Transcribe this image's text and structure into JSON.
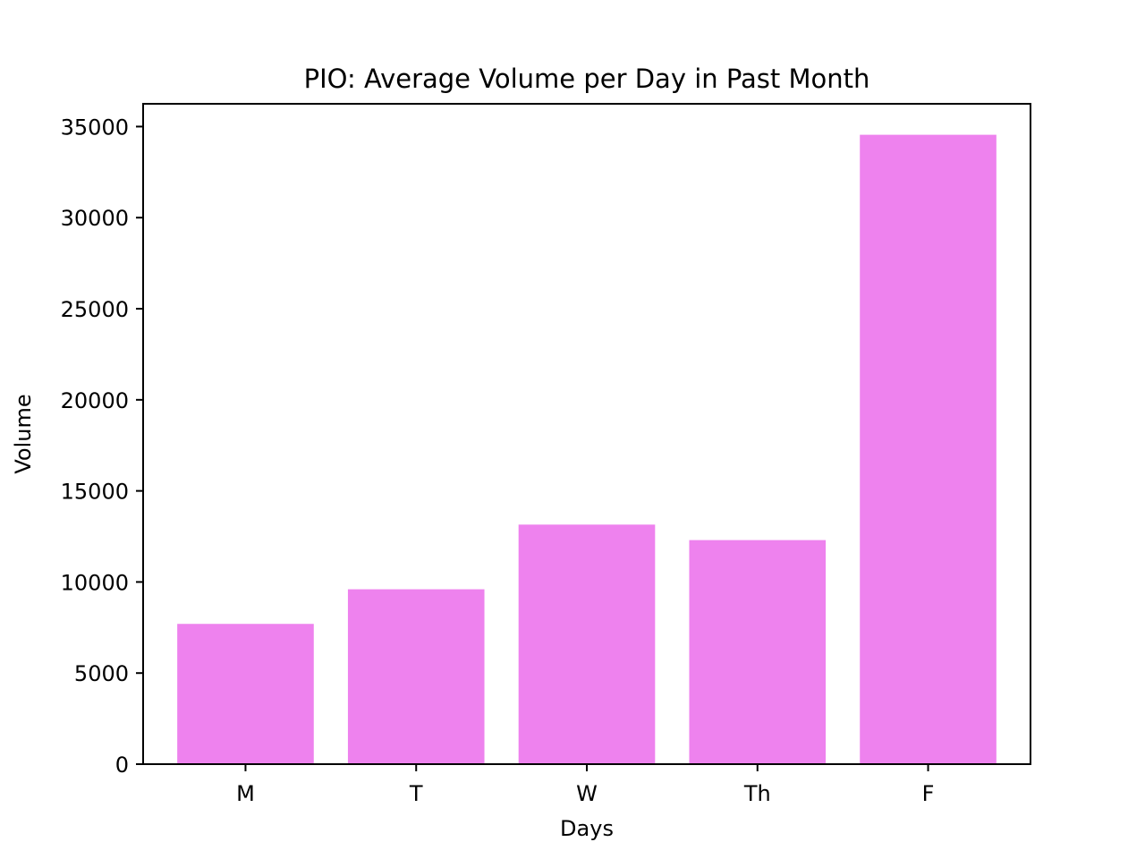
{
  "chart_data": {
    "type": "bar",
    "title": "PIO: Average Volume per Day in Past Month",
    "xlabel": "Days",
    "ylabel": "Volume",
    "categories": [
      "M",
      "T",
      "W",
      "Th",
      "F"
    ],
    "values": [
      7700,
      9600,
      13150,
      12300,
      34550
    ],
    "ylim": [
      0,
      36250
    ],
    "yticks": [
      0,
      5000,
      10000,
      15000,
      20000,
      25000,
      30000,
      35000
    ],
    "bar_color": "#ee82ee",
    "grid": false,
    "legend": "none"
  }
}
